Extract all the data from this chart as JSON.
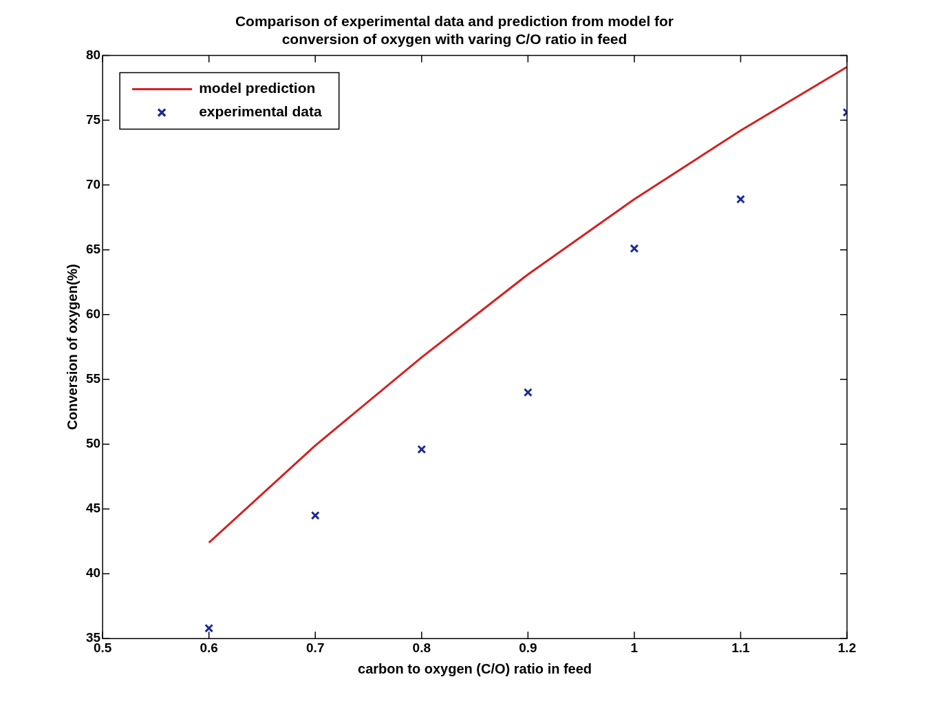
{
  "chart_data": {
    "type": "line",
    "title": "Comparison of experimental data and prediction from model for conversion of oxygen with varing C/O ratio in feed",
    "xlabel": "carbon to oxygen (C/O) ratio in feed",
    "ylabel": "Conversion of oxygen(%)",
    "x": [
      0.6,
      0.7,
      0.8,
      0.9,
      1.0,
      1.1,
      1.2
    ],
    "series": [
      {
        "name": "model prediction",
        "color": "#d42020",
        "marker": "none",
        "values": [
          42.4,
          49.9,
          56.7,
          63.1,
          68.9,
          74.2,
          79.1
        ]
      },
      {
        "name": "experimental data",
        "type": "scatter",
        "color": "#1a2a9a",
        "marker": "cross",
        "values": [
          35.8,
          44.5,
          49.6,
          54.0,
          65.1,
          68.9,
          75.6
        ]
      }
    ],
    "xlim": [
      0.5,
      1.2
    ],
    "xticks": [
      0.5,
      0.6,
      0.7,
      0.8,
      0.9,
      1,
      1.1,
      1.2
    ],
    "ylim": [
      35,
      80
    ],
    "yticks": [
      35,
      40,
      45,
      50,
      55,
      60,
      65,
      70,
      75,
      80
    ],
    "grid": false,
    "legend": "top left",
    "line_style": "solid"
  }
}
